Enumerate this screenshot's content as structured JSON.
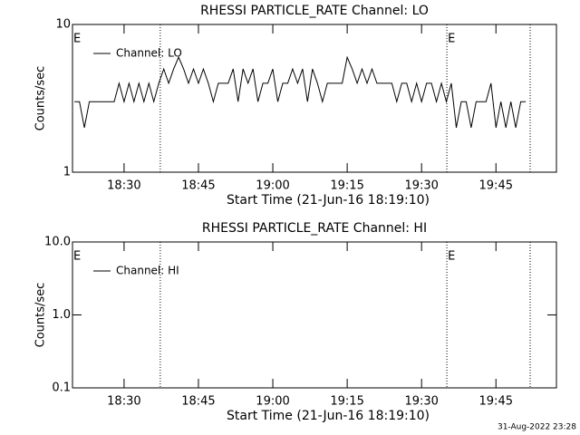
{
  "chart_data": [
    {
      "type": "line",
      "title": "RHESSI PARTICLE_RATE Channel: LO",
      "xlabel": "Start Time (21-Jun-16 18:19:10)",
      "ylabel": "Counts/sec",
      "xlim": [
        19.6,
        117.2
      ],
      "xticks": [
        {
          "value": 30,
          "label": "18:30"
        },
        {
          "value": 45,
          "label": "18:45"
        },
        {
          "value": 60,
          "label": "19:00"
        },
        {
          "value": 75,
          "label": "19:15"
        },
        {
          "value": 90,
          "label": "19:30"
        },
        {
          "value": 105,
          "label": "19:45"
        }
      ],
      "ylim": [
        1,
        10
      ],
      "yticks": [
        1,
        10
      ],
      "ylog": true,
      "legend": "top-left",
      "vlines": [
        37.3,
        95.1,
        111.9
      ],
      "annotations": [
        {
          "text": "E",
          "x": 19.6
        },
        {
          "text": "E",
          "x": 95.1
        }
      ],
      "x": [
        20,
        21,
        22,
        23,
        24,
        25,
        26,
        27,
        28,
        29,
        30,
        31,
        32,
        33,
        34,
        35,
        36,
        37,
        38,
        39,
        40,
        41,
        42,
        43,
        44,
        45,
        46,
        47,
        48,
        49,
        50,
        51,
        52,
        53,
        54,
        55,
        56,
        57,
        58,
        59,
        60,
        61,
        62,
        63,
        64,
        65,
        66,
        67,
        68,
        69,
        70,
        71,
        72,
        73,
        74,
        75,
        76,
        77,
        78,
        79,
        80,
        81,
        82,
        83,
        84,
        85,
        86,
        87,
        88,
        89,
        90,
        91,
        92,
        93,
        94,
        95,
        96,
        97,
        98,
        99,
        100,
        101,
        102,
        103,
        104,
        105,
        106,
        107,
        108,
        109,
        110,
        111
      ],
      "series": [
        {
          "name": "Channel: LO",
          "color": "#000000",
          "values": [
            3,
            3,
            2,
            3,
            3,
            3,
            3,
            3,
            3,
            4,
            3,
            4,
            3,
            4,
            3,
            4,
            3,
            4,
            5,
            4,
            5,
            6,
            5,
            4,
            5,
            4,
            5,
            4,
            3,
            4,
            4,
            4,
            5,
            3,
            5,
            4,
            5,
            3,
            4,
            4,
            5,
            3,
            4,
            4,
            5,
            4,
            5,
            3,
            5,
            4,
            3,
            4,
            4,
            4,
            4,
            6,
            5,
            4,
            5,
            4,
            5,
            4,
            4,
            4,
            4,
            3,
            4,
            4,
            3,
            4,
            3,
            4,
            4,
            3,
            4,
            3,
            4,
            2,
            3,
            3,
            2,
            3,
            3,
            3,
            4,
            2,
            3,
            2,
            3,
            2,
            3,
            3
          ]
        }
      ]
    },
    {
      "type": "line",
      "title": "RHESSI PARTICLE_RATE Channel: HI",
      "xlabel": "Start Time (21-Jun-16 18:19:10)",
      "ylabel": "Counts/sec",
      "xlim": [
        19.6,
        117.2
      ],
      "xticks": [
        {
          "value": 30,
          "label": "18:30"
        },
        {
          "value": 45,
          "label": "18:45"
        },
        {
          "value": 60,
          "label": "19:00"
        },
        {
          "value": 75,
          "label": "19:15"
        },
        {
          "value": 90,
          "label": "19:30"
        },
        {
          "value": 105,
          "label": "19:45"
        }
      ],
      "ylim": [
        0.1,
        10
      ],
      "yticks": [
        {
          "value": 0.1,
          "label": "0.1"
        },
        {
          "value": 1,
          "label": "1.0"
        },
        {
          "value": 10,
          "label": "10.0"
        }
      ],
      "ylog": true,
      "legend": "top-left",
      "vlines": [
        37.3,
        95.1,
        111.9
      ],
      "annotations": [
        {
          "text": "E",
          "x": 19.6
        },
        {
          "text": "E",
          "x": 95.1
        }
      ],
      "x": [],
      "series": [
        {
          "name": "Channel: HI",
          "color": "#000000",
          "values": []
        }
      ]
    }
  ],
  "footer": "31-Aug-2022 23:28"
}
